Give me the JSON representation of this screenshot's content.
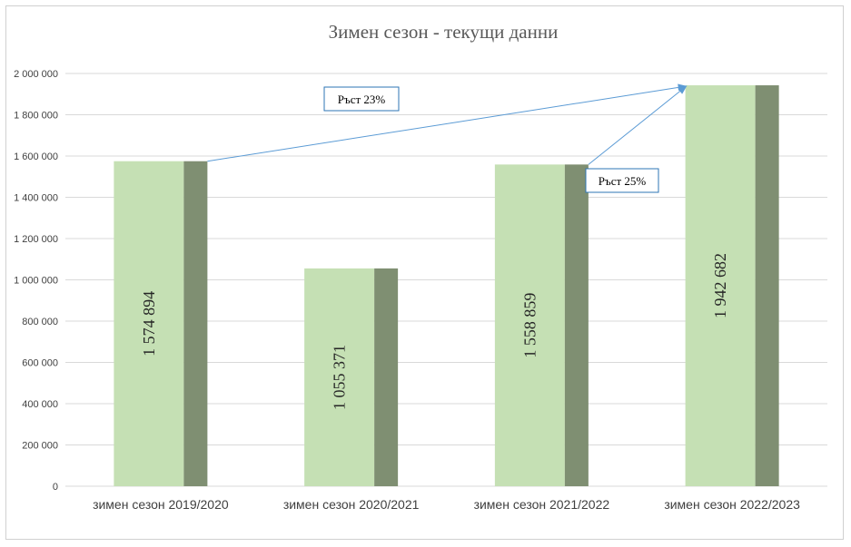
{
  "chart_data": {
    "type": "bar",
    "title": "Зимен сезон - текущи данни",
    "categories": [
      "зимен сезон 2019/2020",
      "зимен сезон 2020/2021",
      "зимен сезон 2021/2022",
      "зимен сезон 2022/2023"
    ],
    "values": [
      1574894,
      1055371,
      1558859,
      1942682
    ],
    "data_labels": [
      "1 574 894",
      "1 055 371",
      "1 558 859",
      "1 942 682"
    ],
    "ylim": [
      0,
      2000000
    ],
    "y_ticks": [
      0,
      200000,
      400000,
      600000,
      800000,
      1000000,
      1200000,
      1400000,
      1600000,
      1800000,
      2000000
    ],
    "y_tick_labels": [
      "0",
      "200 000",
      "400 000",
      "600 000",
      "800 000",
      "1 000 000",
      "1 200 000",
      "1 400 000",
      "1 600 000",
      "1 800 000",
      "2 000 000"
    ],
    "grid": true,
    "legend": "none",
    "colors": {
      "bar_light": "#c5e0b4",
      "bar_dark": "#7f8f72",
      "grid": "#d9d9d9",
      "arrow": "#5b9bd5",
      "callout_border": "#2e75b6"
    },
    "annotations": [
      {
        "text": "Ръст 23%",
        "from_category": 0,
        "to_category": 3
      },
      {
        "text": "Ръст 25%",
        "from_category": 2,
        "to_category": 3
      }
    ]
  }
}
